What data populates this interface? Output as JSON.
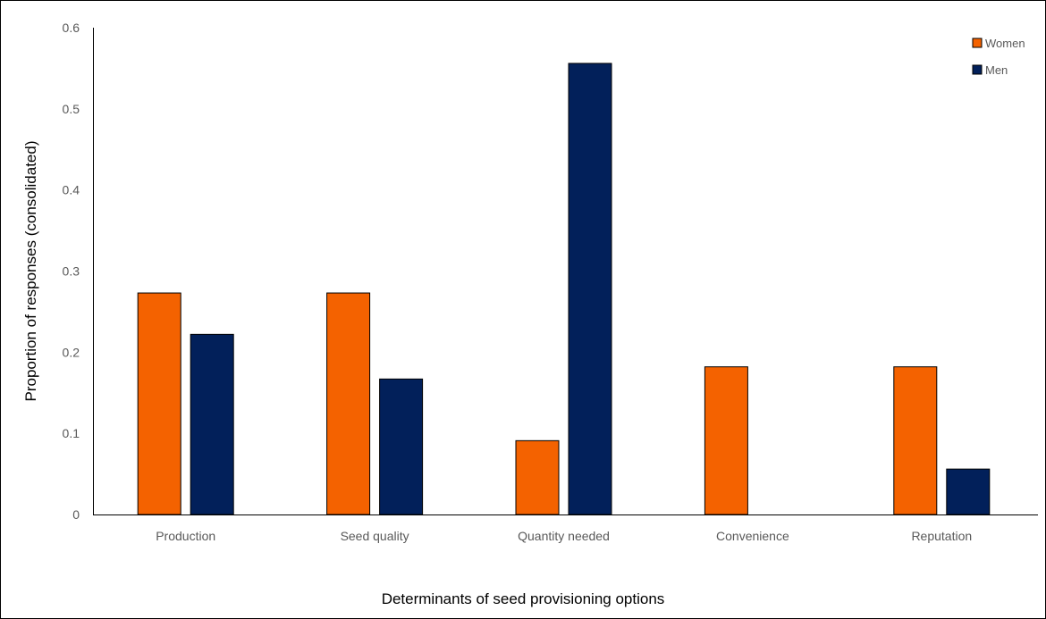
{
  "chart_data": {
    "type": "bar",
    "title": "",
    "xlabel": "Determinants of seed provisioning options",
    "ylabel": "Proportion of responses (consolidated)",
    "ylim": [
      0,
      0.6
    ],
    "yticks": [
      "0",
      "0.1",
      "0.2",
      "0.3",
      "0.4",
      "0.5",
      "0.6"
    ],
    "categories": [
      "Production",
      "Seed quality",
      "Quantity needed",
      "Convenience",
      "Reputation"
    ],
    "series": [
      {
        "name": "Women",
        "color": "#F46200",
        "values": [
          0.273,
          0.273,
          0.091,
          0.182,
          0.182
        ]
      },
      {
        "name": "Men",
        "color": "#02205A",
        "values": [
          0.222,
          0.167,
          0.556,
          0,
          0.056
        ]
      }
    ],
    "legend_position": "top-right",
    "grid": false
  }
}
